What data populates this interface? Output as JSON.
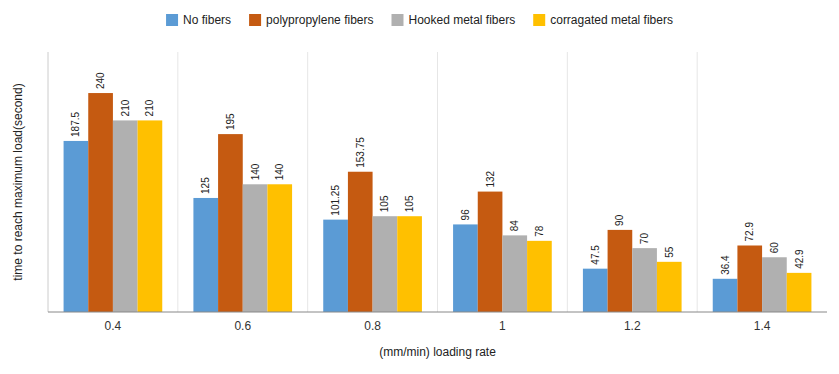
{
  "chart_data": {
    "type": "bar",
    "categories": [
      "0.4",
      "0.6",
      "0.8",
      "1",
      "1.2",
      "1.4"
    ],
    "series": [
      {
        "name": "No fibers",
        "color": "#5b9bd5",
        "values": [
          187.5,
          125,
          101.25,
          96,
          47.5,
          36.4
        ]
      },
      {
        "name": "polypropylene fibers",
        "color": "#c55a11",
        "values": [
          240,
          195,
          153.75,
          132,
          90,
          72.9
        ]
      },
      {
        "name": "Hooked metal fibers",
        "color": "#b0b0b0",
        "values": [
          210,
          140,
          105,
          84,
          70,
          60
        ]
      },
      {
        "name": "corragated metal fibers",
        "color": "#ffc000",
        "values": [
          210,
          140,
          105,
          78,
          55,
          42.9
        ]
      }
    ],
    "xlabel": "(mm/min) loading rate",
    "ylabel": "time to reach maximum load(second)",
    "ylim": [
      0,
      285
    ],
    "data_labels": true,
    "tick_labels": "x",
    "legend": "top"
  }
}
